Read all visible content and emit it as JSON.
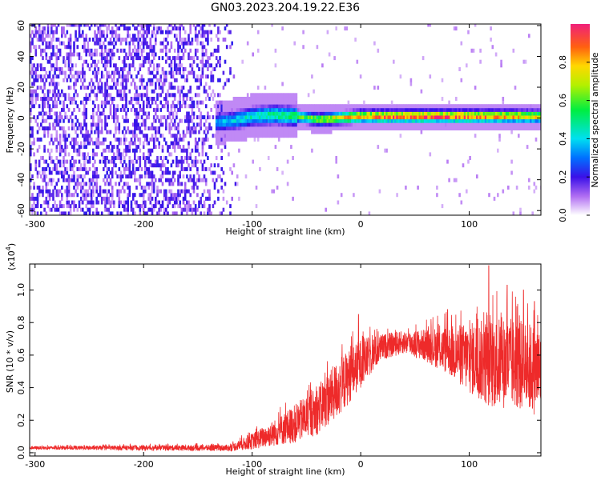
{
  "title": "GN03.2023.204.19.22.E36",
  "colorbar": {
    "label": "Normalized spectral amplitude",
    "ticks": [
      "0.0",
      "0.2",
      "0.4",
      "0.6",
      "0.8"
    ],
    "tick_values": [
      0.0,
      0.2,
      0.4,
      0.6,
      0.8
    ],
    "range": [
      0,
      1
    ]
  },
  "chart_data": [
    {
      "type": "heatmap",
      "panel": "spectrogram",
      "xlabel": "Height of straight line (km)",
      "ylabel": "Frequency (Hz)",
      "xlim": [
        -305,
        166
      ],
      "ylim": [
        -63,
        61
      ],
      "x_ticks": [
        -300,
        -200,
        -100,
        0,
        100
      ],
      "y_ticks": [
        -60,
        -40,
        -20,
        0,
        20,
        40,
        60
      ],
      "x_tick_labels": [
        "-300",
        "-200",
        "-100",
        "0",
        "100"
      ],
      "y_tick_labels": [
        "-60",
        "-40",
        "-20",
        "0",
        "20",
        "40",
        "60"
      ],
      "noise_region_x": [
        -305,
        -125
      ],
      "noise_amplitude": [
        0.05,
        0.2
      ],
      "signal_band": {
        "x_start": -135,
        "center_frequency_hz": [
          [
            -135,
            -4
          ],
          [
            -120,
            -3
          ],
          [
            -100,
            0
          ],
          [
            -80,
            1
          ],
          [
            -60,
            0
          ],
          [
            -40,
            -2
          ],
          [
            0,
            0
          ],
          [
            50,
            0
          ],
          [
            100,
            0
          ],
          [
            166,
            0
          ]
        ],
        "half_width_hz": 4,
        "peak_amplitude": [
          [
            -135,
            0.35
          ],
          [
            -100,
            0.45
          ],
          [
            -60,
            0.55
          ],
          [
            -30,
            0.7
          ],
          [
            0,
            0.85
          ],
          [
            50,
            0.95
          ],
          [
            100,
            0.9
          ],
          [
            166,
            0.75
          ]
        ]
      },
      "colormap": "rainbow"
    },
    {
      "type": "line",
      "panel": "snr",
      "xlabel": "Height of straight line (km)",
      "ylabel": "SNR (10 * v/v)",
      "y_multiplier_label": "(x10",
      "y_multiplier_exp": "4",
      "y_multiplier_close": ")",
      "xlim": [
        -305,
        166
      ],
      "ylim": [
        -0.02,
        1.16
      ],
      "x_ticks": [
        -300,
        -200,
        -100,
        0,
        100
      ],
      "y_ticks": [
        0.0,
        0.2,
        0.4,
        0.6,
        0.8,
        1.0
      ],
      "x_tick_labels": [
        "-300",
        "-200",
        "-100",
        "0",
        "100"
      ],
      "y_tick_labels": [
        "0.0",
        "0.2",
        "0.4",
        "0.6",
        "0.8",
        "1.0"
      ],
      "series": [
        {
          "color": "#ee2a2a",
          "envelope_x": [
            -305,
            -120,
            -100,
            -80,
            -60,
            -40,
            -20,
            0,
            20,
            40,
            60,
            80,
            100,
            120,
            140,
            166
          ],
          "envelope_mean": [
            0.03,
            0.03,
            0.07,
            0.12,
            0.18,
            0.26,
            0.4,
            0.55,
            0.65,
            0.68,
            0.66,
            0.63,
            0.58,
            0.55,
            0.55,
            0.5
          ],
          "envelope_spread": [
            0.01,
            0.02,
            0.05,
            0.08,
            0.12,
            0.15,
            0.18,
            0.15,
            0.08,
            0.07,
            0.1,
            0.15,
            0.22,
            0.28,
            0.28,
            0.28
          ],
          "peaks": [
            [
              -2,
              0.85
            ],
            [
              80,
              0.88
            ],
            [
              118,
              1.15
            ],
            [
              135,
              1.03
            ],
            [
              150,
              1.0
            ],
            [
              160,
              0.93
            ]
          ]
        }
      ]
    }
  ]
}
